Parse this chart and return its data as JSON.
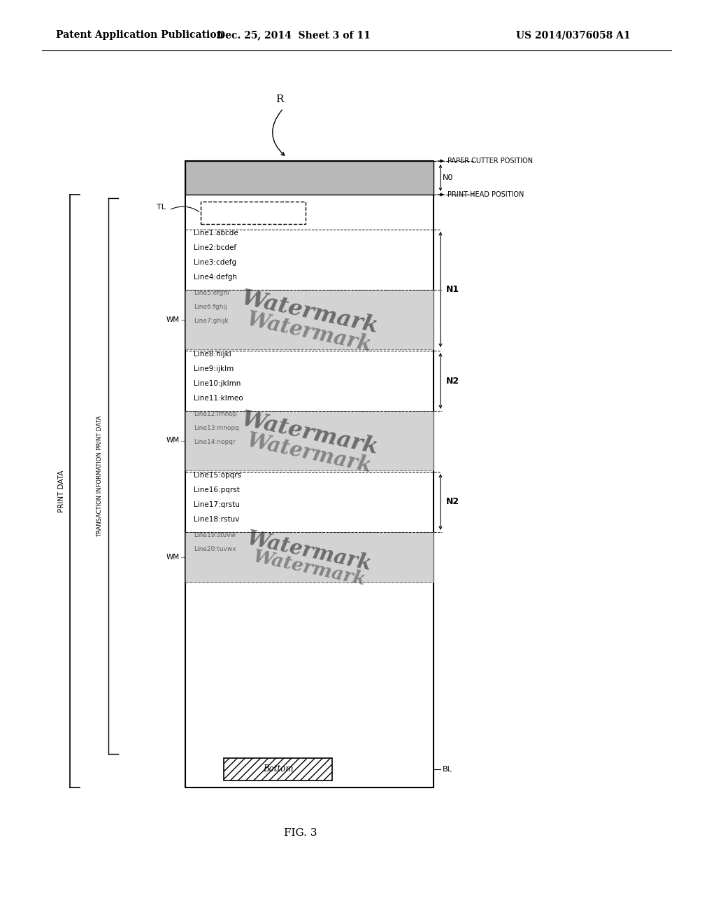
{
  "bg_color": "#ffffff",
  "header_left": "Patent Application Publication",
  "header_mid": "Dec. 25, 2014  Sheet 3 of 11",
  "header_right": "US 2014/0376058 A1",
  "fig_label": "FIG. 3",
  "lines_section1": [
    "Line1:abcde",
    "Line2:bcdef",
    "Line3:cdefg",
    "Line4:defgh"
  ],
  "lines_section2": [
    "Line8:hijkl",
    "Line9:ijklm",
    "Line10:jklmn",
    "Line11:klmeo"
  ],
  "lines_section3": [
    "Line15:opqrs",
    "Line16:pqrst",
    "Line17:qrstu",
    "Line18:rstuv"
  ],
  "wm_lines1": [
    "Line5:efghi",
    "Line6:fghij",
    "Line7:ghijk"
  ],
  "wm_lines2": [
    "Line12:lmnop",
    "Line13:mnopq",
    "Line14:nopqr"
  ],
  "wm_lines3": [
    "Line19:stuvw",
    "Line20:tuvwx"
  ]
}
